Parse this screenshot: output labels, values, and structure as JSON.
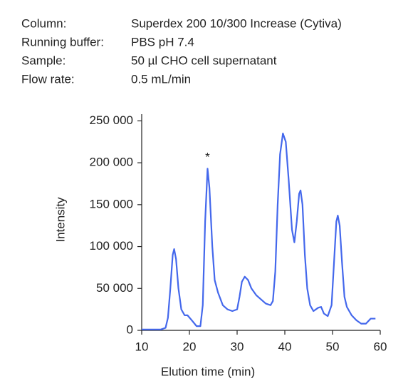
{
  "header": {
    "rows": [
      {
        "label": "Column:",
        "value": "Superdex 200 10/300 Increase (Cytiva)"
      },
      {
        "label": "Running buffer:",
        "value": "PBS pH 7.4"
      },
      {
        "label": "Sample:",
        "value": "50 µl CHO cell supernatant"
      },
      {
        "label": "Flow rate:",
        "value": "0.5 mL/min"
      }
    ]
  },
  "chart_data": {
    "type": "line",
    "x_label": "Elution time (min)",
    "y_label": "Intensity",
    "color": "#4468ec",
    "x": [
      10,
      14,
      15,
      15.5,
      16,
      16.5,
      16.8,
      17.2,
      17.7,
      18.3,
      19,
      19.6,
      20.5,
      21.5,
      22.3,
      22.8,
      23.3,
      23.8,
      24.2,
      24.8,
      25.3,
      26,
      27,
      28,
      29,
      30,
      30.5,
      31,
      31.6,
      32.3,
      33,
      34,
      35,
      36,
      37,
      37.5,
      38,
      38.5,
      39,
      39.6,
      40.2,
      40.8,
      41.5,
      42,
      42.5,
      43,
      43.3,
      43.7,
      44.2,
      44.7,
      45.3,
      46,
      47,
      47.6,
      48.2,
      49,
      49.8,
      50.3,
      50.8,
      51.1,
      51.5,
      52,
      52.5,
      53,
      54,
      55,
      56,
      57,
      58,
      59
    ],
    "values": [
      1000,
      1000,
      3000,
      15000,
      50000,
      90000,
      97000,
      85000,
      50000,
      25000,
      18000,
      18000,
      12000,
      5000,
      5000,
      30000,
      130000,
      193000,
      170000,
      100000,
      60000,
      45000,
      30000,
      25000,
      23000,
      25000,
      40000,
      58000,
      64000,
      60000,
      50000,
      42000,
      37000,
      32000,
      30000,
      35000,
      70000,
      150000,
      210000,
      235000,
      225000,
      180000,
      120000,
      105000,
      130000,
      163000,
      167000,
      150000,
      90000,
      50000,
      30000,
      23000,
      27000,
      28000,
      20000,
      17000,
      30000,
      80000,
      130000,
      137000,
      125000,
      80000,
      40000,
      28000,
      18000,
      12000,
      8000,
      8000,
      14000,
      14000
    ],
    "annotations": [
      {
        "text": "*",
        "x": 23.8,
        "y": 206000
      }
    ],
    "xlim": [
      10,
      60
    ],
    "xticks": [
      10,
      20,
      30,
      40,
      50,
      60
    ],
    "ylim": [
      0,
      258000
    ],
    "yticks": [
      0,
      {
        "value": 50000,
        "label": "50 000"
      },
      {
        "value": 100000,
        "label": "100 000"
      },
      {
        "value": 150000,
        "label": "150 000"
      },
      {
        "value": 200000,
        "label": "200 000"
      },
      {
        "value": 250000,
        "label": "250 000"
      }
    ]
  }
}
